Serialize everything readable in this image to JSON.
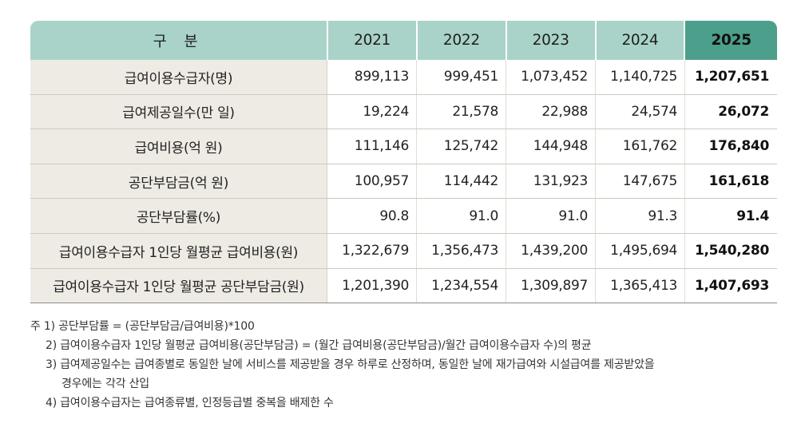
{
  "table": {
    "header": [
      "구 분",
      "2021",
      "2022",
      "2023",
      "2024",
      "2025"
    ],
    "rows": [
      {
        "label": "급여이용수급자(명)",
        "values": [
          "899,113",
          "999,451",
          "1,073,452",
          "1,140,725",
          "1,207,651"
        ]
      },
      {
        "label": "급여제공일수(만 일)",
        "values": [
          "19,224",
          "21,578",
          "22,988",
          "24,574",
          "26,072"
        ]
      },
      {
        "label": "급여비용(억 원)",
        "values": [
          "111,146",
          "125,742",
          "144,948",
          "161,762",
          "176,840"
        ]
      },
      {
        "label": "공단부담금(억 원)",
        "values": [
          "100,957",
          "114,442",
          "131,923",
          "147,675",
          "161,618"
        ]
      },
      {
        "label": "공단부담률(%)",
        "values": [
          "90.8",
          "91.0",
          "91.0",
          "91.3",
          "91.4"
        ]
      },
      {
        "label": "급여이용수급자 1인당 월평균 급여비용(원)",
        "values": [
          "1,322,679",
          "1,356,473",
          "1,439,200",
          "1,495,694",
          "1,540,280"
        ]
      },
      {
        "label": "급여이용수급자 1인당 월평균 공단부담금(원)",
        "values": [
          "1,201,390",
          "1,234,554",
          "1,309,897",
          "1,365,413",
          "1,407,693"
        ]
      }
    ]
  },
  "notes": {
    "n1": "주 1) 공단부담률 = (공단부담금/급여비용)*100",
    "n2": "2) 급여이용수급자 1인당 월평균 급여비용(공단부담금) = (월간 급여비용(공단부담금)/월간 급여이용수급자 수)의 평균",
    "n3": "3) 급여제공일수는 급여종별로 동일한 날에 서비스를 제공받을 경우 하루로 산정하며, 동일한 날에 재가급여와 시설급여를 제공받았을",
    "n3b": "경우에는 각각 산입",
    "n4": "4) 급여이용수급자는 급여종류별, 인정등급별 중복을 배제한 수"
  }
}
